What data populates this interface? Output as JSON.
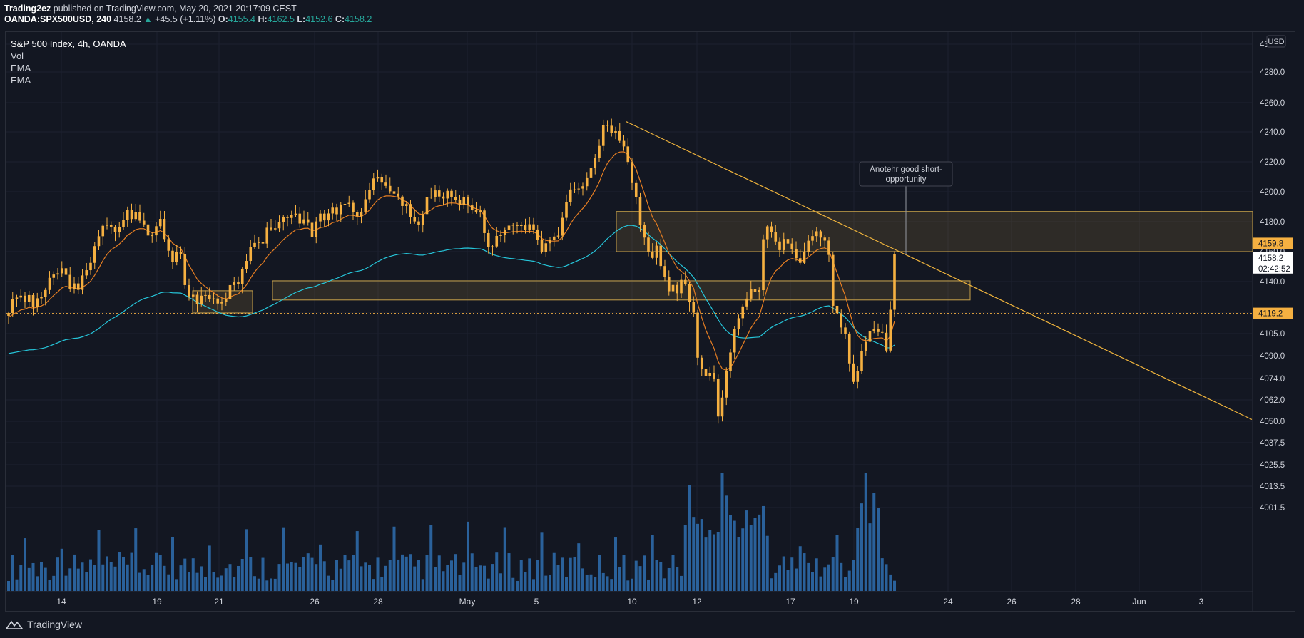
{
  "header": {
    "publisher": "Trading2ez",
    "published_text": "published on TradingView.com, May 20, 2021 20:17:09 CEST",
    "symbol": "OANDA:SPX500USD, 240",
    "last": "4158.2",
    "change": "+45.5 (+1.11%)",
    "o_label": "O:",
    "o": "4155.4",
    "h_label": "H:",
    "h": "4162.5",
    "l_label": "L:",
    "l": "4152.6",
    "c_label": "C:",
    "c": "4158.2"
  },
  "legend": {
    "title": "S&P 500 Index, 4h, OANDA",
    "items": [
      "Vol",
      "EMA",
      "EMA"
    ]
  },
  "footer": {
    "brand": "TradingView"
  },
  "colors": {
    "background": "#131722",
    "candle": "#f5b041",
    "ema_fast": "#e67e22",
    "ema_slow": "#26c6da",
    "volume": "#2f6fb0",
    "zone": "#c8a24a",
    "trendline": "#f0b43c",
    "text": "#d1d4dc"
  },
  "chart_data": {
    "type": "candlestick",
    "symbol": "S&P 500 Index",
    "timeframe": "4h",
    "currency_label": "USD",
    "price_axis_ticks": [
      "4300.0",
      "4280.0",
      "4260.0",
      "4240.0",
      "4220.0",
      "4200.0",
      "4180.0",
      "4160.0",
      "4140.0",
      "4120.0",
      "4105.0",
      "4090.0",
      "4074.0",
      "4062.0",
      "4050.0",
      "4037.5",
      "4025.5",
      "4013.5",
      "4001.5"
    ],
    "time_axis_ticks": [
      "14",
      "19",
      "21",
      "26",
      "28",
      "May",
      "5",
      "10",
      "12",
      "17",
      "19",
      "24",
      "26",
      "28",
      "Jun",
      "3"
    ],
    "closes": [
      4119.5,
      4128.6,
      4129.6,
      4130.8,
      4126.9,
      4131.2,
      4123.4,
      4129.1,
      4130.1,
      4134.5,
      4142.5,
      4144.7,
      4145.5,
      4148.9,
      4144.5,
      4134.9,
      4138.8,
      4134.6,
      4144.1,
      4147.6,
      4152.5,
      4163.7,
      4170.3,
      4177.3,
      4178.0,
      4176.7,
      4172.9,
      4176.3,
      4181.3,
      4187.7,
      4181.8,
      4186.3,
      4180.7,
      4178.2,
      4170.8,
      4170.9,
      4177.0,
      4181.9,
      4168.4,
      4160.6,
      4153.3,
      4159.8,
      4158.4,
      4137.7,
      4130.3,
      4131.4,
      4125.3,
      4130.8,
      4131.2,
      4128.7,
      4129.0,
      4125.7,
      4126.9,
      4128.5,
      4137.7,
      4139.5,
      4138.2,
      4148.3,
      4153.8,
      4163.1,
      4165.8,
      4166.4,
      4165.4,
      4176.0,
      4174.9,
      4175.6,
      4179.6,
      4183.1,
      4182.5,
      4184.3,
      4185.4,
      4178.8,
      4181.6,
      4179.3,
      4169.9,
      4180.2,
      4185.4,
      4180.9,
      4185.5,
      4189.4,
      4185.0,
      4191.5,
      4191.9,
      4192.6,
      4186.6,
      4183.6,
      4186.7,
      4195.0,
      4201.3,
      4208.9,
      4210.0,
      4206.1,
      4203.9,
      4200.3,
      4198.7,
      4196.8,
      4190.5,
      4191.8,
      4183.0,
      4180.2,
      4177.7,
      4185.1,
      4196.4,
      4196.6,
      4200.9,
      4196.8,
      4195.5,
      4200.6,
      4196.3,
      4194.7,
      4191.4,
      4196.4,
      4190.9,
      4187.6,
      4186.7,
      4187.5,
      4172.4,
      4163.2,
      4163.5,
      4170.5,
      4171.4,
      4174.4,
      4177.4,
      4177.9,
      4177.2,
      4177.6,
      4174.7,
      4178.3,
      4174.8,
      4168.1,
      4160.0,
      4165.6,
      4168.1,
      4170.1,
      4170.7,
      4182.6,
      4193.2,
      4201.5,
      4201.6,
      4202.1,
      4203.7,
      4209.1,
      4215.9,
      4222.5,
      4230.6,
      4244.8,
      4244.2,
      4239.1,
      4240.5,
      4234.0,
      4230.3,
      4219.9,
      4205.8,
      4196.5,
      4177.8,
      4169.4,
      4159.8,
      4155.8,
      4164.0,
      4150.4,
      4143.3,
      4133.7,
      4137.8,
      4132.4,
      4141.1,
      4138.5,
      4126.5,
      4119.7,
      4088.6,
      4081.0,
      4075.8,
      4078.0,
      4073.9,
      4052.7,
      4063.3,
      4079.0,
      4092.2,
      4108.2,
      4115.8,
      4123.8,
      4128.9,
      4135.3,
      4133.3,
      4134.4,
      4168.3,
      4176.9,
      4173.0,
      4166.8,
      4161.0,
      4168.5,
      4165.4,
      4161.8,
      4155.6,
      4152.5,
      4159.9,
      4167.3,
      4170.4,
      4173.6,
      4169.4,
      4167.4,
      4157.8,
      4124.2,
      4119.3,
      4109.3,
      4105.0,
      4084.6,
      4072.1,
      4079.4,
      4093.2,
      4099.4,
      4106.6,
      4108.2,
      4106.1,
      4105.6,
      4093.5,
      4121.6,
      4158.2
    ],
    "last_price": "4158.2",
    "price_labels": {
      "upper_level": "4159.8",
      "last": "4158.2",
      "countdown": "02:42:52",
      "lower_level": "4119.2"
    },
    "annotation": "Anotehr good short-opportunity"
  }
}
